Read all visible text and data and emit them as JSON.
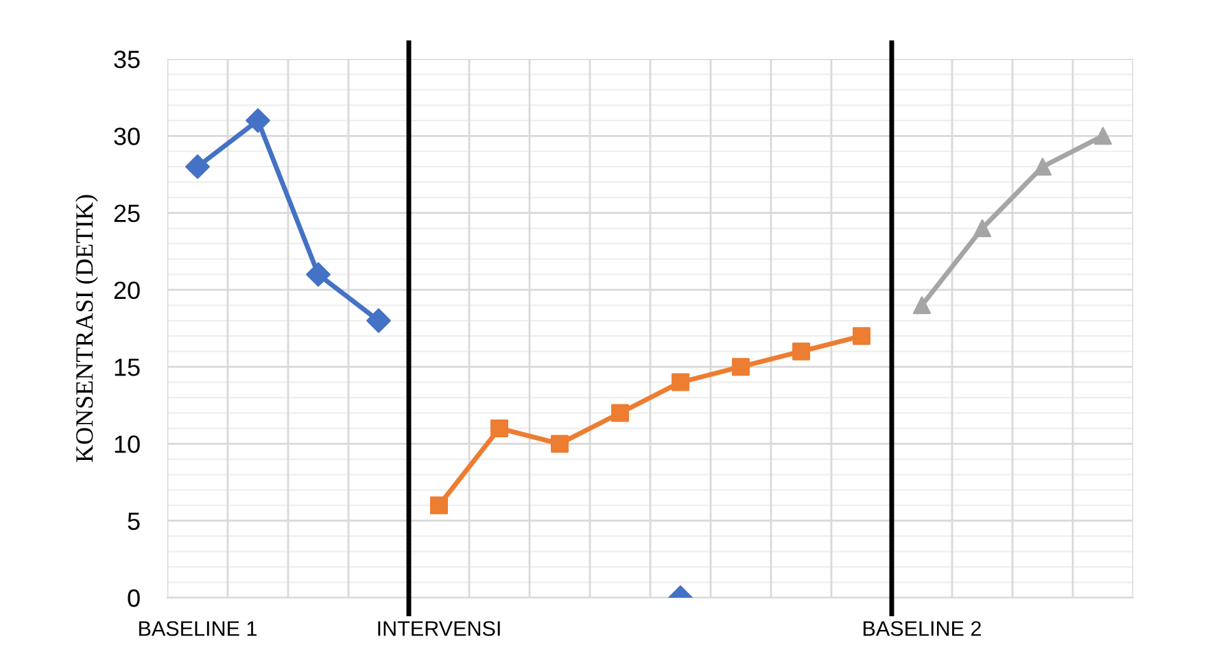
{
  "chart_data": {
    "type": "line",
    "ylabel": "KONSENTRASI (DETIK)",
    "categories": [
      "BASELINE 1",
      null,
      null,
      null,
      "INTERVENSI",
      null,
      null,
      null,
      null,
      null,
      null,
      null,
      "BASELINE 2",
      null,
      null,
      null
    ],
    "series": [
      {
        "color": "#4472c4",
        "marker": "diamond",
        "values": [
          28,
          31,
          21,
          18,
          null,
          null,
          null,
          null,
          0,
          null,
          null,
          null,
          null,
          null,
          null,
          null
        ]
      },
      {
        "color": "#ed7d31",
        "marker": "square",
        "values": [
          null,
          null,
          null,
          null,
          6,
          11,
          10,
          12,
          14,
          15,
          16,
          17,
          null,
          null,
          null,
          null
        ]
      },
      {
        "color": "#a5a5a5",
        "marker": "triangle",
        "values": [
          null,
          null,
          null,
          null,
          null,
          null,
          null,
          null,
          null,
          null,
          null,
          null,
          19,
          24,
          28,
          30
        ]
      }
    ],
    "ylim": [
      0,
      35
    ],
    "yticks": [
      0,
      5,
      10,
      15,
      20,
      25,
      30,
      35
    ],
    "grid": true,
    "legend": false
  }
}
